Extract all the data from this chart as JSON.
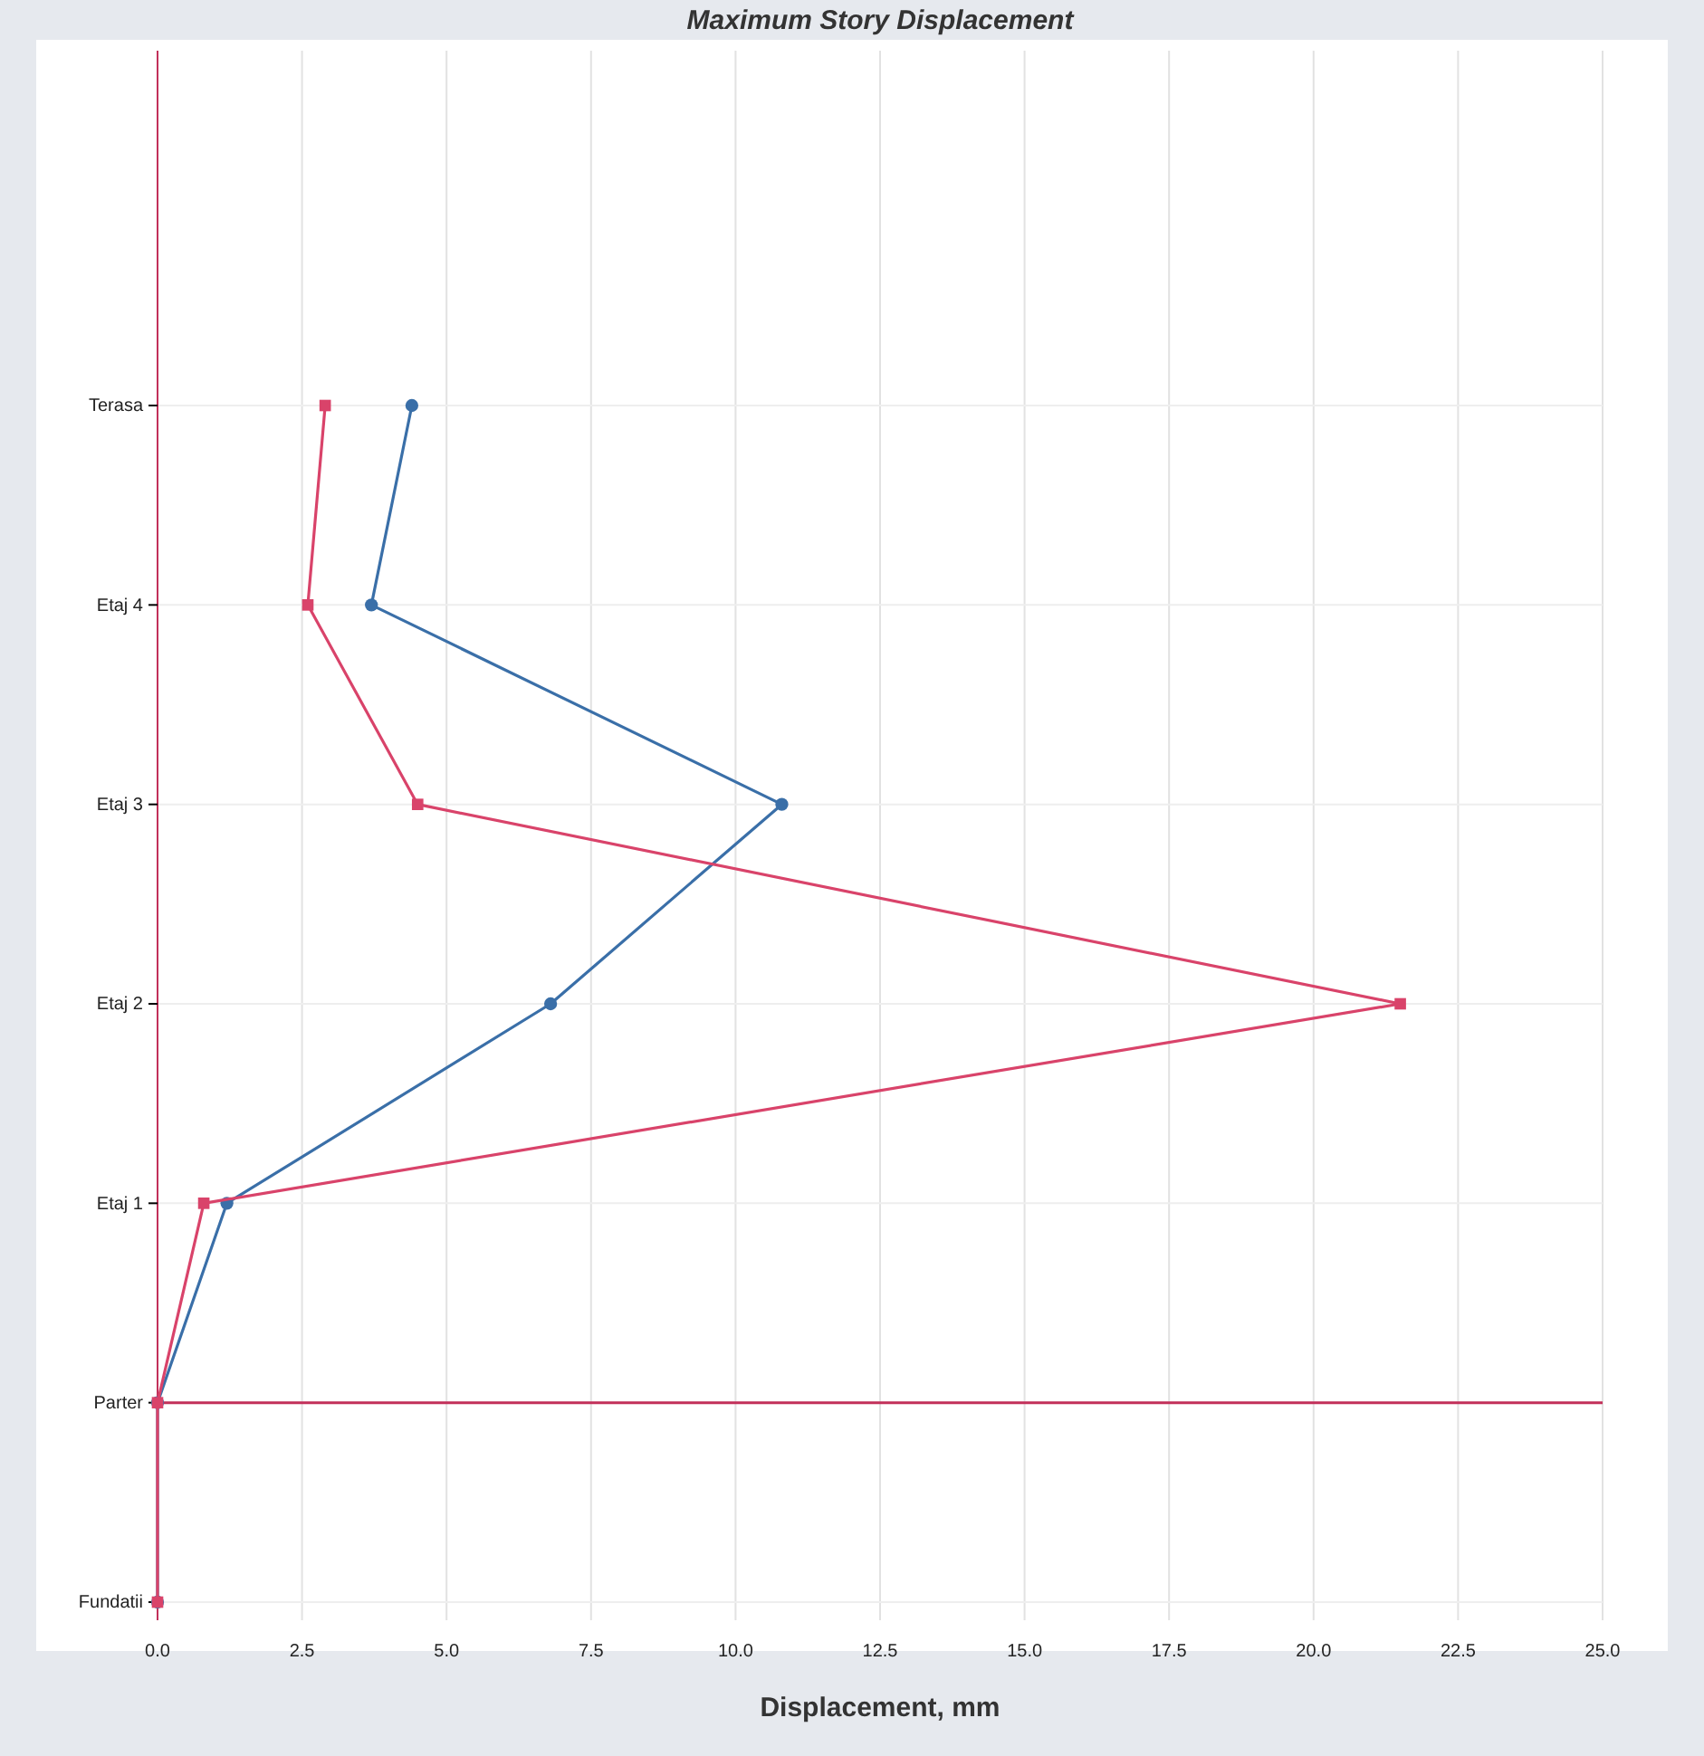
{
  "chart_data": {
    "type": "line",
    "orientation": "horizontal",
    "title": "Maximum Story Displacement",
    "xlabel": "Displacement, mm",
    "categories": [
      "Terasa",
      "Etaj 4",
      "Etaj 3",
      "Etaj 2",
      "Etaj 1",
      "Parter",
      "Fundatii"
    ],
    "series": [
      {
        "color": "#3a6fa8",
        "marker": "circle",
        "values": [
          4.4,
          3.7,
          10.8,
          6.8,
          1.2,
          0,
          0
        ]
      },
      {
        "color": "#d9436a",
        "marker": "square",
        "values": [
          2.9,
          2.6,
          4.5,
          21.5,
          0.8,
          0,
          0
        ]
      }
    ],
    "xlim": [
      0,
      25
    ],
    "xticks": [
      {
        "value": 0,
        "label": "0.0"
      },
      {
        "value": 2.5,
        "label": "2.5"
      },
      {
        "value": 5,
        "label": "5.0"
      },
      {
        "value": 7.5,
        "label": "7.5"
      },
      {
        "value": 10,
        "label": "10.0"
      },
      {
        "value": 12.5,
        "label": "12.5"
      },
      {
        "value": 15,
        "label": "15.0"
      },
      {
        "value": 17.5,
        "label": "17.5"
      },
      {
        "value": 20,
        "label": "20.0"
      },
      {
        "value": 22.5,
        "label": "22.5"
      },
      {
        "value": 25,
        "label": "25.0"
      }
    ],
    "ref_lines": [
      {
        "axis": "y",
        "value": "Parter",
        "color": "#c2305a"
      }
    ],
    "grid": true,
    "legend": false,
    "line_style": "solid"
  }
}
